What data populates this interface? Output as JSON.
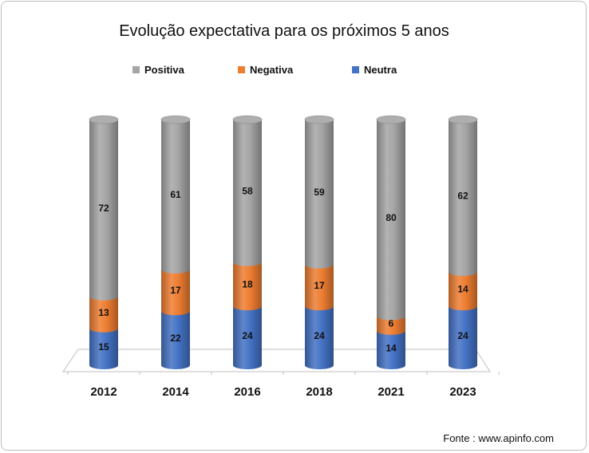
{
  "chart_data": {
    "type": "bar",
    "stacked": true,
    "title": "Evolução expectativa para os próximos 5 anos",
    "categories": [
      "2012",
      "2014",
      "2016",
      "2018",
      "2021",
      "2023"
    ],
    "series": [
      {
        "name": "Neutra",
        "values": [
          15,
          22,
          24,
          24,
          14,
          24
        ],
        "color": "#4472c4"
      },
      {
        "name": "Negativa",
        "values": [
          13,
          17,
          18,
          17,
          6,
          14
        ],
        "color": "#ed7d31"
      },
      {
        "name": "Positiva",
        "values": [
          72,
          61,
          58,
          59,
          80,
          62
        ],
        "color": "#a5a5a5"
      }
    ],
    "legend_order": [
      "Positiva",
      "Negativa",
      "Neutra"
    ],
    "legend_position": "top",
    "grid": false,
    "ylim": [
      0,
      100
    ]
  },
  "source_text": "Fonte : www.apinfo.com"
}
